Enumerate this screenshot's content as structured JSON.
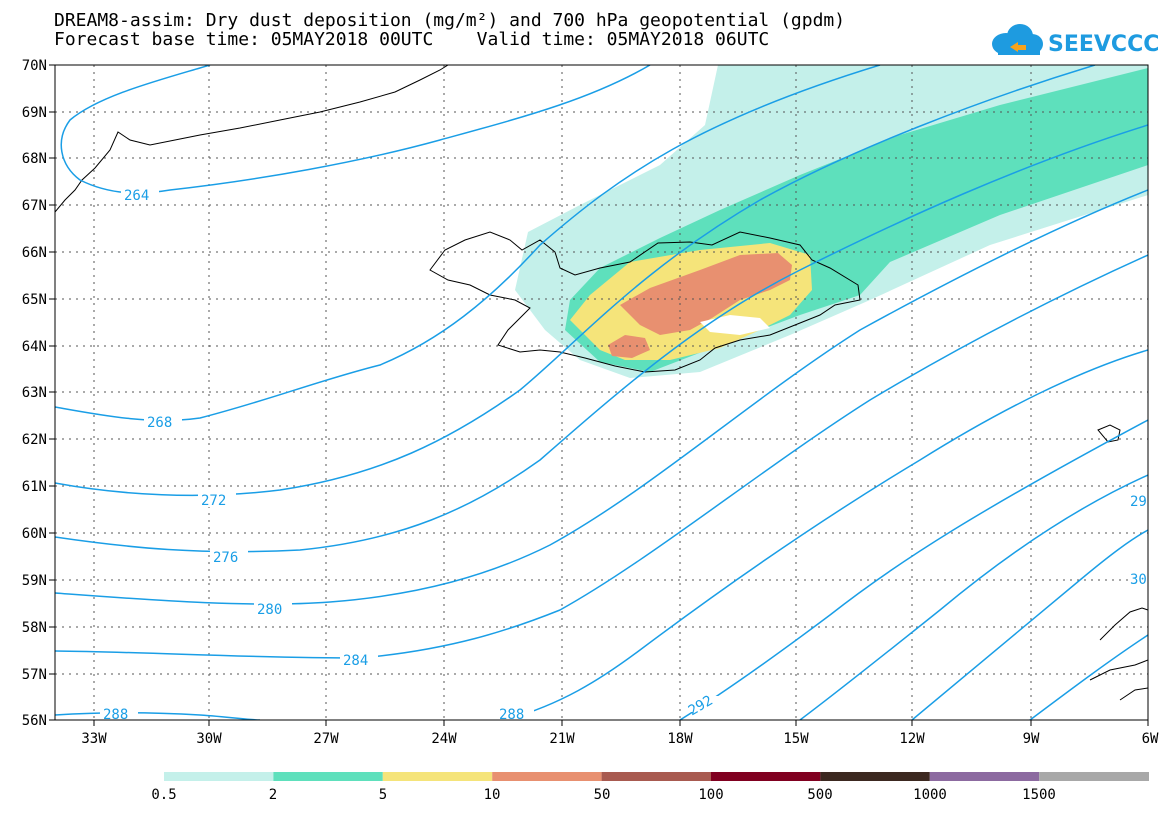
{
  "header": {
    "title_line1": "DREAM8-assim: Dry dust deposition (mg/m²) and 700 hPa geopotential (gpdm)",
    "title_line2": "Forecast base time: 05MAY2018 00UTC    Valid time: 05MAY2018 06UTC"
  },
  "logo": {
    "text": "SEEVCCC",
    "color": "#1e9be0",
    "icon": "cloud-logo-icon"
  },
  "map": {
    "lat_labels": [
      "70N",
      "69N",
      "68N",
      "67N",
      "66N",
      "65N",
      "64N",
      "63N",
      "62N",
      "61N",
      "60N",
      "59N",
      "58N",
      "57N",
      "56N"
    ],
    "lon_labels": [
      "33W",
      "30W",
      "27W",
      "24W",
      "21W",
      "18W",
      "15W",
      "12W",
      "9W",
      "6W"
    ],
    "contour_color": "#1a9ee6",
    "contour_labels": [
      "264",
      "268",
      "272",
      "276",
      "280",
      "284",
      "288",
      "288",
      "292",
      "29",
      "30"
    ]
  },
  "colorbar": {
    "colors": [
      "#c4f0ea",
      "#5ee0bc",
      "#f5e47a",
      "#e89070",
      "#a85a50",
      "#800020",
      "#3c2820",
      "#8c6aa0",
      "#a8a8a8"
    ],
    "labels": [
      "0.5",
      "2",
      "5",
      "10",
      "50",
      "100",
      "500",
      "1000",
      "1500"
    ]
  }
}
